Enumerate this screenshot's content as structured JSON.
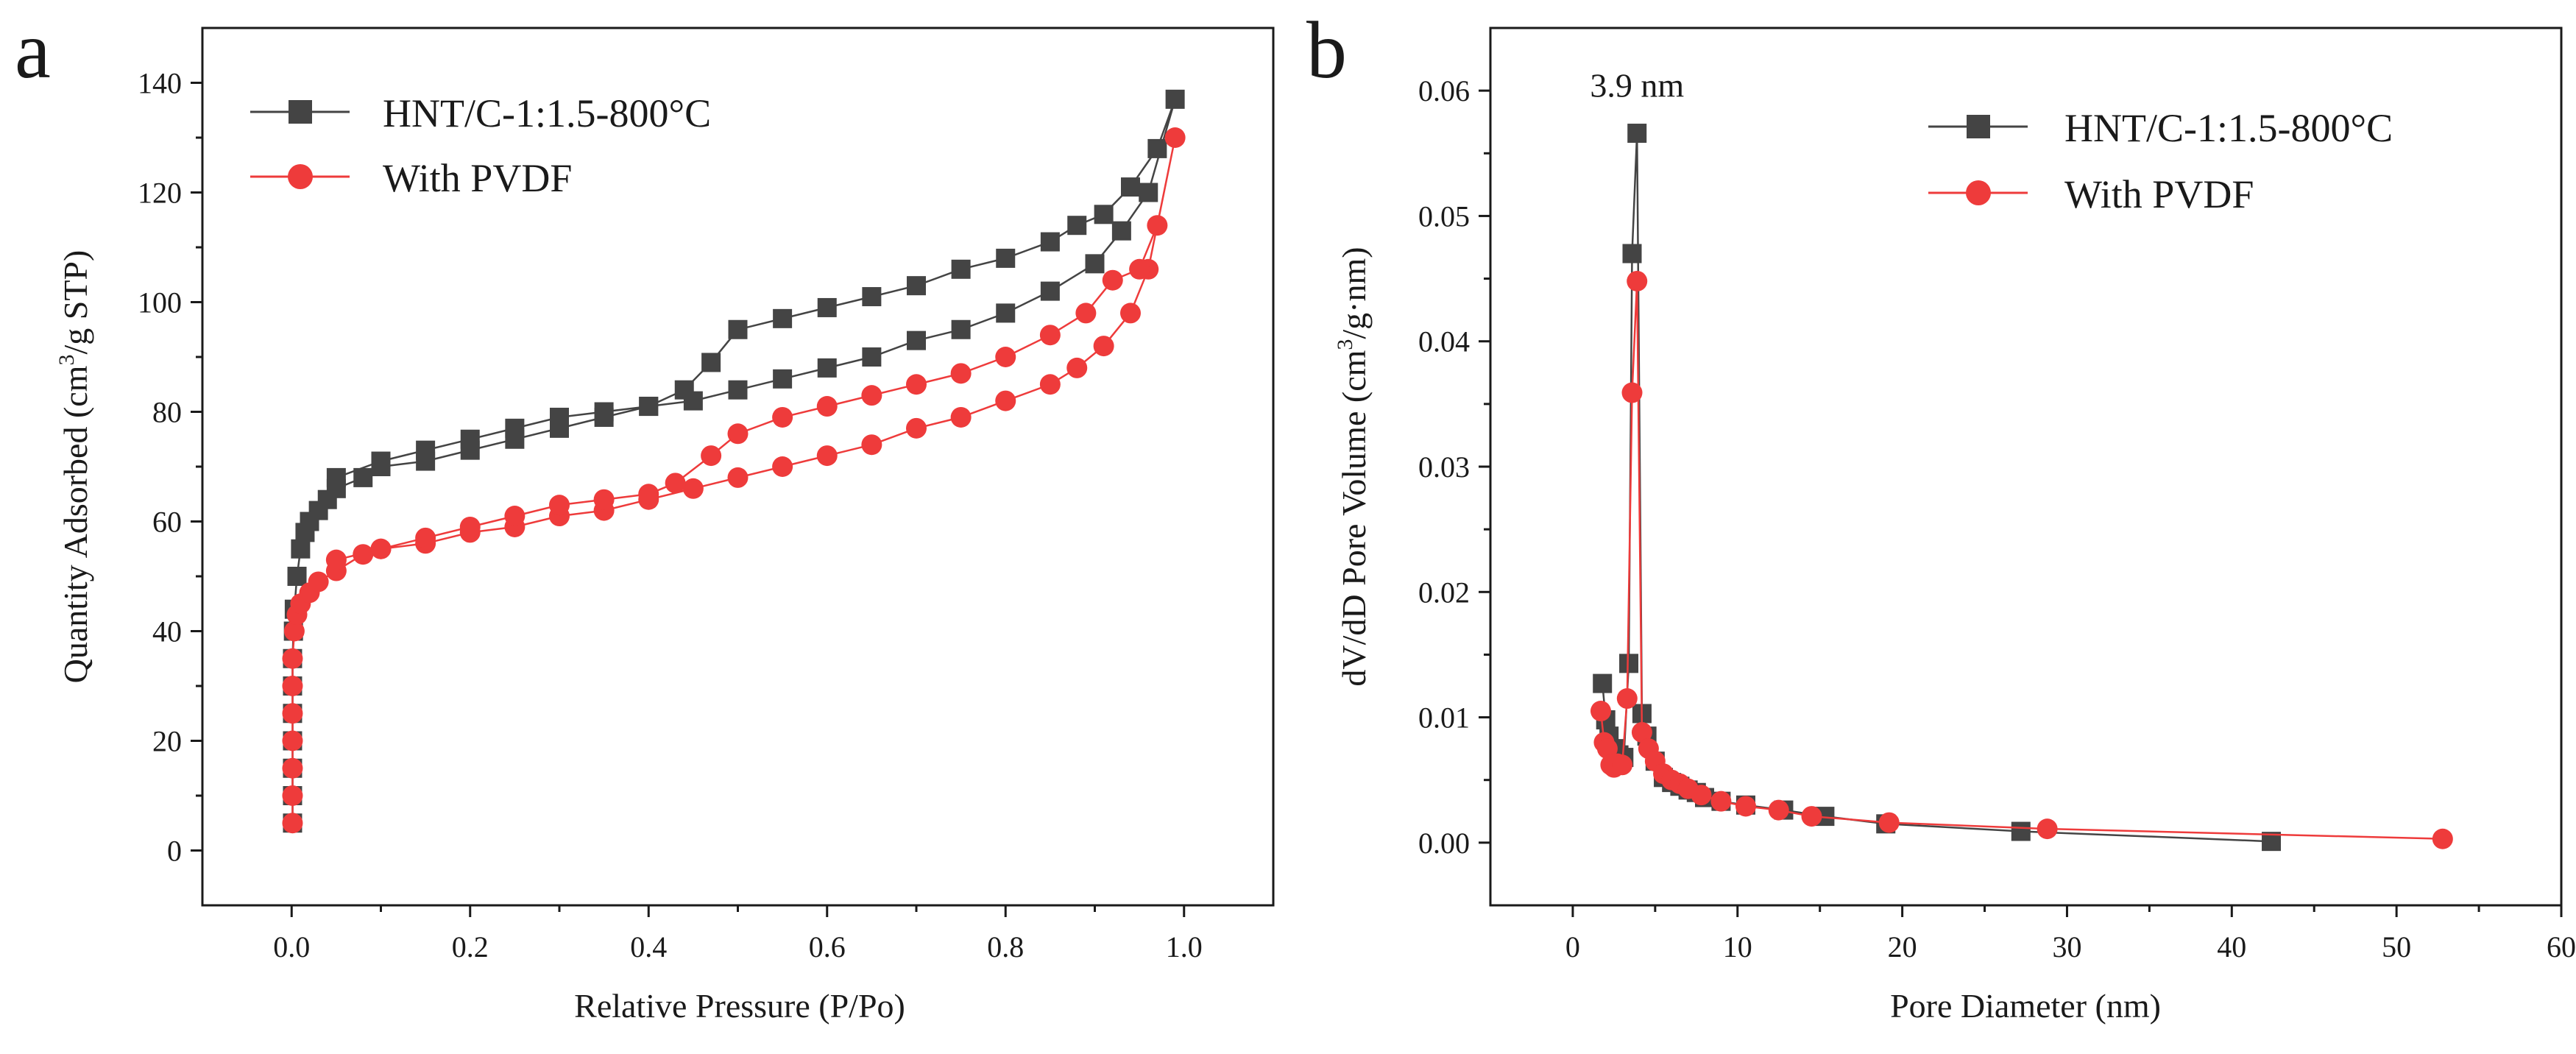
{
  "chart_data": [
    {
      "panel_label": "a",
      "type": "line",
      "xlabel": "Relative Pressure (P/Po)",
      "ylabel_prefix": "Quantity Adsorbed (cm",
      "ylabel_sup": "3",
      "ylabel_suffix": "/g STP)",
      "xlim": [
        -0.1,
        1.1
      ],
      "ylim": [
        -10,
        150
      ],
      "xticks": [
        0.0,
        0.2,
        0.4,
        0.6,
        0.8,
        1.0
      ],
      "xtick_labels": [
        "0.0",
        "0.2",
        "0.4",
        "0.6",
        "0.8",
        "1.0"
      ],
      "yticks": [
        0,
        20,
        40,
        60,
        80,
        100,
        120,
        140
      ],
      "ytick_labels": [
        "0",
        "20",
        "40",
        "60",
        "80",
        "100",
        "120",
        "140"
      ],
      "legend_position": "top-left",
      "series": [
        {
          "name": "HNT/C-1:1.5-800°C",
          "color": "#444444",
          "marker": "square",
          "points": [
            [
              0.001,
              5
            ],
            [
              0.001,
              10
            ],
            [
              0.001,
              15
            ],
            [
              0.001,
              20
            ],
            [
              0.001,
              25
            ],
            [
              0.001,
              30
            ],
            [
              0.001,
              35
            ],
            [
              0.002,
              40
            ],
            [
              0.003,
              44
            ],
            [
              0.006,
              50
            ],
            [
              0.01,
              55
            ],
            [
              0.015,
              58
            ],
            [
              0.02,
              60
            ],
            [
              0.03,
              62
            ],
            [
              0.04,
              64
            ],
            [
              0.05,
              66
            ],
            [
              0.08,
              68
            ],
            [
              0.1,
              70
            ],
            [
              0.15,
              71
            ],
            [
              0.2,
              73
            ],
            [
              0.25,
              75
            ],
            [
              0.3,
              77
            ],
            [
              0.35,
              79
            ],
            [
              0.4,
              81
            ],
            [
              0.45,
              82
            ],
            [
              0.5,
              84
            ],
            [
              0.55,
              86
            ],
            [
              0.6,
              88
            ],
            [
              0.65,
              90
            ],
            [
              0.7,
              93
            ],
            [
              0.75,
              95
            ],
            [
              0.8,
              98
            ],
            [
              0.85,
              102
            ],
            [
              0.9,
              107
            ],
            [
              0.93,
              113
            ],
            [
              0.96,
              120
            ],
            [
              0.99,
              137
            ],
            [
              0.97,
              128
            ],
            [
              0.94,
              121
            ],
            [
              0.91,
              116
            ],
            [
              0.88,
              114
            ],
            [
              0.85,
              111
            ],
            [
              0.8,
              108
            ],
            [
              0.75,
              106
            ],
            [
              0.7,
              103
            ],
            [
              0.65,
              101
            ],
            [
              0.6,
              99
            ],
            [
              0.55,
              97
            ],
            [
              0.5,
              95
            ],
            [
              0.47,
              89
            ],
            [
              0.44,
              84
            ],
            [
              0.4,
              81
            ],
            [
              0.35,
              80
            ],
            [
              0.3,
              79
            ],
            [
              0.25,
              77
            ],
            [
              0.2,
              75
            ],
            [
              0.15,
              73
            ],
            [
              0.1,
              71
            ],
            [
              0.05,
              68
            ]
          ]
        },
        {
          "name": "With PVDF",
          "color": "#ee3b3b",
          "marker": "circle",
          "points": [
            [
              0.001,
              5
            ],
            [
              0.001,
              10
            ],
            [
              0.001,
              15
            ],
            [
              0.001,
              20
            ],
            [
              0.001,
              25
            ],
            [
              0.001,
              30
            ],
            [
              0.001,
              35
            ],
            [
              0.003,
              40
            ],
            [
              0.006,
              43
            ],
            [
              0.01,
              45
            ],
            [
              0.02,
              47
            ],
            [
              0.03,
              49
            ],
            [
              0.05,
              51
            ],
            [
              0.08,
              54
            ],
            [
              0.1,
              55
            ],
            [
              0.15,
              56
            ],
            [
              0.2,
              58
            ],
            [
              0.25,
              59
            ],
            [
              0.3,
              61
            ],
            [
              0.35,
              62
            ],
            [
              0.4,
              64
            ],
            [
              0.45,
              66
            ],
            [
              0.5,
              68
            ],
            [
              0.55,
              70
            ],
            [
              0.6,
              72
            ],
            [
              0.65,
              74
            ],
            [
              0.7,
              77
            ],
            [
              0.75,
              79
            ],
            [
              0.8,
              82
            ],
            [
              0.85,
              85
            ],
            [
              0.88,
              88
            ],
            [
              0.91,
              92
            ],
            [
              0.94,
              98
            ],
            [
              0.96,
              106
            ],
            [
              0.99,
              130
            ],
            [
              0.97,
              114
            ],
            [
              0.95,
              106
            ],
            [
              0.92,
              104
            ],
            [
              0.89,
              98
            ],
            [
              0.85,
              94
            ],
            [
              0.8,
              90
            ],
            [
              0.75,
              87
            ],
            [
              0.7,
              85
            ],
            [
              0.65,
              83
            ],
            [
              0.6,
              81
            ],
            [
              0.55,
              79
            ],
            [
              0.5,
              76
            ],
            [
              0.47,
              72
            ],
            [
              0.43,
              67
            ],
            [
              0.4,
              65
            ],
            [
              0.35,
              64
            ],
            [
              0.3,
              63
            ],
            [
              0.25,
              61
            ],
            [
              0.2,
              59
            ],
            [
              0.15,
              57
            ],
            [
              0.1,
              55
            ],
            [
              0.05,
              53
            ]
          ]
        }
      ]
    },
    {
      "panel_label": "b",
      "type": "line",
      "xlabel": "Pore Diameter (nm)",
      "ylabel_prefix": "dV/dD Pore Volume (cm",
      "ylabel_sup": "3",
      "ylabel_suffix": "/g·nm)",
      "xlim": [
        -5,
        60
      ],
      "ylim": [
        -0.005,
        0.065
      ],
      "xticks": [
        0,
        10,
        20,
        30,
        40,
        50,
        60
      ],
      "xtick_labels": [
        "0",
        "10",
        "20",
        "30",
        "40",
        "50",
        "60"
      ],
      "yticks": [
        0.0,
        0.01,
        0.02,
        0.03,
        0.04,
        0.05,
        0.06
      ],
      "ytick_labels": [
        "0.00",
        "0.01",
        "0.02",
        "0.03",
        "0.04",
        "0.05",
        "0.06"
      ],
      "legend_position": "top-right",
      "annotation": {
        "text": "3.9 nm",
        "x": 3.9,
        "y": 0.0595
      },
      "series": [
        {
          "name": "HNT/C-1:1.5-800°C",
          "color": "#444444",
          "marker": "square",
          "points": [
            [
              1.8,
              0.0127
            ],
            [
              2.0,
              0.0098
            ],
            [
              2.2,
              0.0085
            ],
            [
              2.5,
              0.0075
            ],
            [
              2.8,
              0.007
            ],
            [
              3.1,
              0.0068
            ],
            [
              3.4,
              0.0143
            ],
            [
              3.6,
              0.047
            ],
            [
              3.9,
              0.0566
            ],
            [
              4.2,
              0.0103
            ],
            [
              4.5,
              0.0085
            ],
            [
              5.0,
              0.0065
            ],
            [
              5.5,
              0.0052
            ],
            [
              6.0,
              0.0048
            ],
            [
              6.5,
              0.0045
            ],
            [
              7.0,
              0.0042
            ],
            [
              7.5,
              0.004
            ],
            [
              8.0,
              0.0036
            ],
            [
              9.0,
              0.0033
            ],
            [
              10.5,
              0.003
            ],
            [
              12.8,
              0.0026
            ],
            [
              15.3,
              0.0021
            ],
            [
              19.0,
              0.0015
            ],
            [
              27.2,
              0.0009
            ],
            [
              42.4,
              0.0001
            ]
          ]
        },
        {
          "name": "With PVDF",
          "color": "#ee3b3b",
          "marker": "circle",
          "points": [
            [
              1.7,
              0.0105
            ],
            [
              1.9,
              0.008
            ],
            [
              2.1,
              0.0075
            ],
            [
              2.3,
              0.0062
            ],
            [
              2.5,
              0.006
            ],
            [
              2.7,
              0.0063
            ],
            [
              3.0,
              0.0062
            ],
            [
              3.3,
              0.0115
            ],
            [
              3.6,
              0.0359
            ],
            [
              3.9,
              0.0448
            ],
            [
              4.2,
              0.0088
            ],
            [
              4.6,
              0.0075
            ],
            [
              5.0,
              0.0065
            ],
            [
              5.5,
              0.0055
            ],
            [
              6.0,
              0.005
            ],
            [
              6.5,
              0.0047
            ],
            [
              7.0,
              0.0043
            ],
            [
              7.8,
              0.0038
            ],
            [
              9.0,
              0.0033
            ],
            [
              10.5,
              0.0029
            ],
            [
              12.5,
              0.0026
            ],
            [
              14.5,
              0.0021
            ],
            [
              19.2,
              0.0016
            ],
            [
              28.8,
              0.0011
            ],
            [
              52.8,
              0.0003
            ]
          ]
        }
      ]
    }
  ]
}
